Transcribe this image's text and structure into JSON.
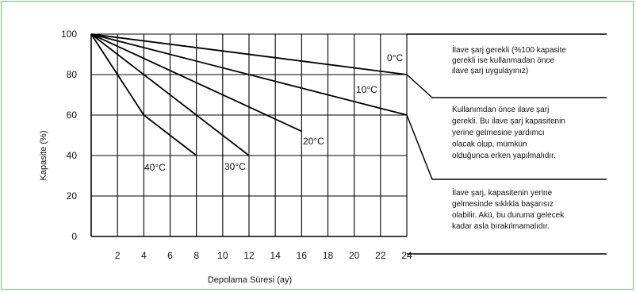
{
  "chart_data": {
    "type": "line",
    "xlabel": "Depolama Süresi (ay)",
    "ylabel": "Kapasite (%)",
    "xlim": [
      0,
      24
    ],
    "ylim": [
      0,
      100
    ],
    "xticks": [
      2,
      4,
      6,
      8,
      10,
      12,
      14,
      16,
      18,
      20,
      22,
      24
    ],
    "yticks": [
      0,
      20,
      40,
      60,
      80,
      100
    ],
    "grid": true,
    "series": [
      {
        "name": "0°C",
        "x": [
          0,
          24
        ],
        "y": [
          100,
          80
        ]
      },
      {
        "name": "10°C",
        "x": [
          0,
          24
        ],
        "y": [
          100,
          60
        ]
      },
      {
        "name": "20°C",
        "x": [
          0,
          16
        ],
        "y": [
          100,
          52
        ]
      },
      {
        "name": "30°C",
        "x": [
          0,
          12
        ],
        "y": [
          100,
          40
        ]
      },
      {
        "name": "40°C",
        "x": [
          0,
          4,
          8
        ],
        "y": [
          100,
          60,
          40
        ]
      }
    ],
    "annotations": [
      {
        "lines": [
          "İlave şarj gerekli (%100 kapasite",
          "gerekli ise kullanmadan önce",
          "ilave şarj uygulayınız)"
        ]
      },
      {
        "lines": [
          "Kullanımdan önce ilave şarj",
          "gerekli. Bu ilave şarj kapasitenin",
          "yerine gelmesine yardımcı",
          "olacak olup, mümkün",
          "olduğunca erken yapılmalıdır."
        ]
      },
      {
        "lines": [
          "İlave şarj, kapasitenin yerine",
          "gelmesinde sıklıkla başarısız",
          "olabilir. Akü, bu duruma gelecek",
          "kadar asla bırakılmamalıdır."
        ]
      }
    ]
  }
}
